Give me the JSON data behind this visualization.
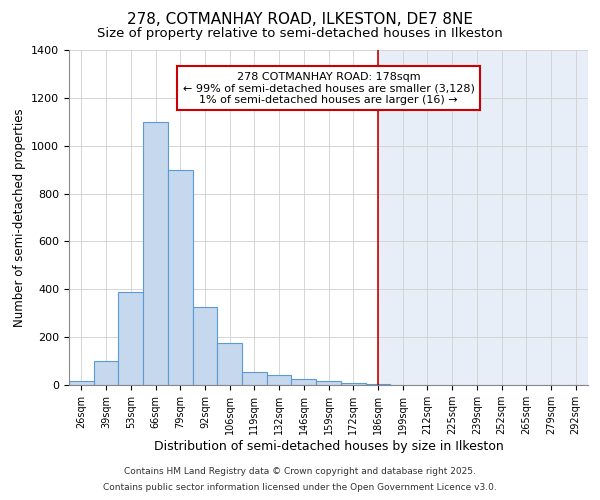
{
  "title": "278, COTMANHAY ROAD, ILKESTON, DE7 8NE",
  "subtitle": "Size of property relative to semi-detached houses in Ilkeston",
  "xlabel": "Distribution of semi-detached houses by size in Ilkeston",
  "ylabel": "Number of semi-detached properties",
  "footer_lines": [
    "Contains HM Land Registry data © Crown copyright and database right 2025.",
    "Contains public sector information licensed under the Open Government Licence v3.0."
  ],
  "bins": [
    "26sqm",
    "39sqm",
    "53sqm",
    "66sqm",
    "79sqm",
    "92sqm",
    "106sqm",
    "119sqm",
    "132sqm",
    "146sqm",
    "159sqm",
    "172sqm",
    "186sqm",
    "199sqm",
    "212sqm",
    "225sqm",
    "239sqm",
    "252sqm",
    "265sqm",
    "279sqm",
    "292sqm"
  ],
  "values": [
    15,
    100,
    390,
    1100,
    900,
    325,
    175,
    55,
    40,
    25,
    15,
    10,
    5,
    0,
    0,
    0,
    0,
    0,
    0,
    0,
    0
  ],
  "bar_color": "#c5d8ee",
  "bar_edge_color": "#5b9bd5",
  "vline_color": "#cc0000",
  "vline_x": 12.5,
  "annotation_box_text": "278 COTMANHAY ROAD: 178sqm\n← 99% of semi-detached houses are smaller (3,128)\n1% of semi-detached houses are larger (16) →",
  "annotation_box_edge_color": "#cc0000",
  "annotation_box_bg": "white",
  "ylim": [
    0,
    1400
  ],
  "bg_left": "white",
  "bg_right": "#e8eef7",
  "yticks": [
    0,
    200,
    400,
    600,
    800,
    1000,
    1200,
    1400
  ],
  "title_fontsize": 11,
  "subtitle_fontsize": 9.5,
  "xlabel_fontsize": 9,
  "ylabel_fontsize": 8.5,
  "annotation_fontsize": 8,
  "footer_fontsize": 6.5
}
